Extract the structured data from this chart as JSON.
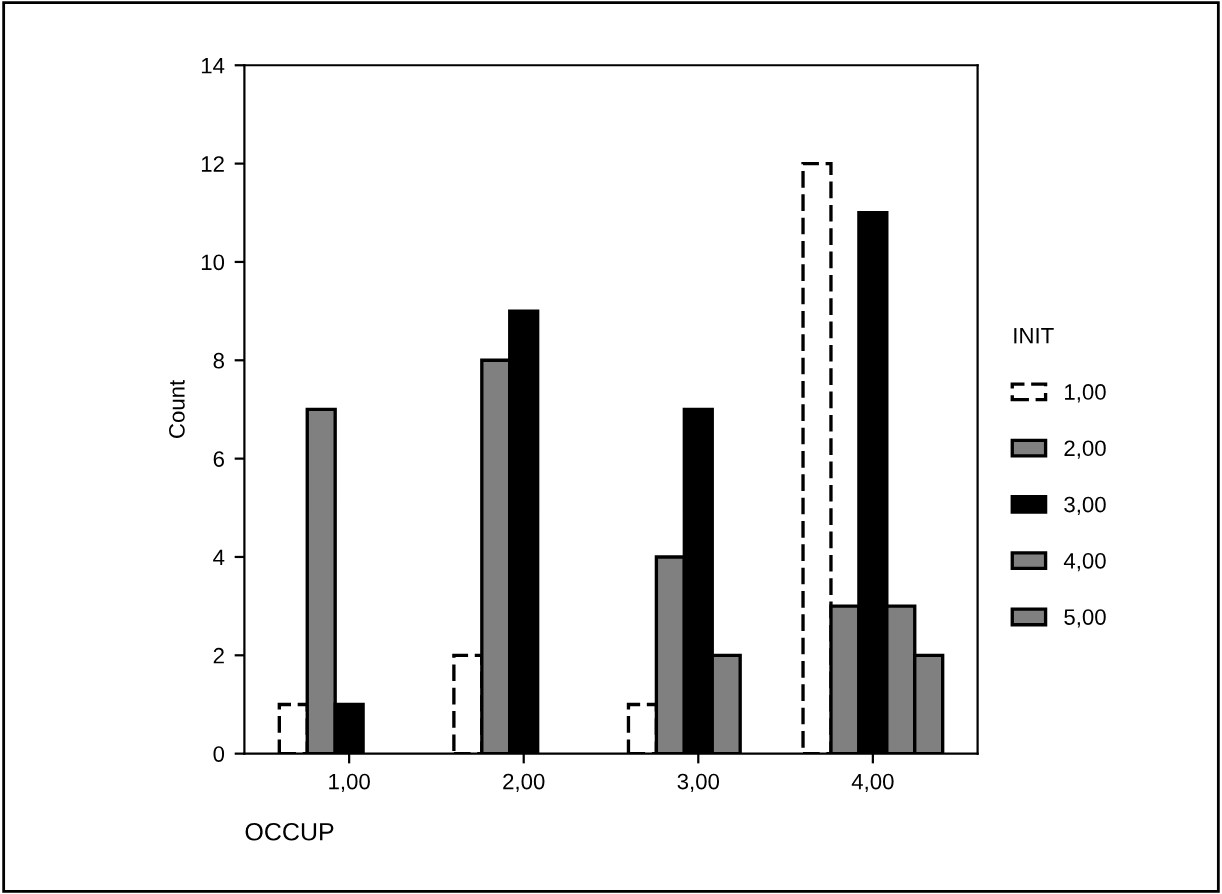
{
  "chart_data": {
    "type": "bar",
    "xlabel": "OCCUP",
    "ylabel": "Count",
    "legend_title": "INIT",
    "legend": "right",
    "grid": false,
    "categories": [
      "1,00",
      "2,00",
      "3,00",
      "4,00"
    ],
    "ylim": [
      0,
      14
    ],
    "yticks": [
      0,
      2,
      4,
      6,
      8,
      10,
      12,
      14
    ],
    "series": [
      {
        "name": "1,00",
        "color": "#ffffff",
        "line_style": "dashed",
        "values": [
          1,
          2,
          1,
          12
        ]
      },
      {
        "name": "2,00",
        "color": "#808080",
        "values": [
          7,
          8,
          4,
          3
        ]
      },
      {
        "name": "3,00",
        "color": "#000000",
        "values": [
          1,
          9,
          7,
          11
        ]
      },
      {
        "name": "4,00",
        "color": "#808080",
        "values": [
          null,
          null,
          2,
          3
        ]
      },
      {
        "name": "5,00",
        "color": "#808080",
        "values": [
          null,
          null,
          null,
          2
        ]
      }
    ]
  }
}
